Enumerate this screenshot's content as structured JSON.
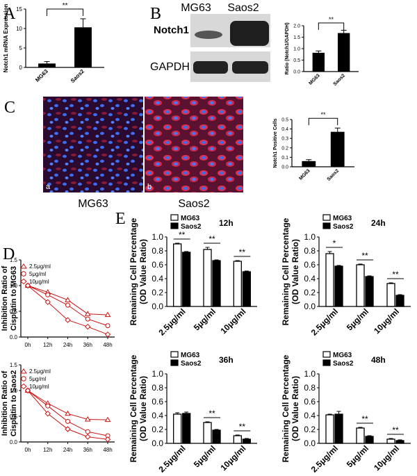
{
  "panel_labels": {
    "A": "A",
    "B": "B",
    "C": "C",
    "D": "D",
    "E": "E"
  },
  "blot": {
    "cell_lines": [
      "MG63",
      "Saos2"
    ],
    "rows": [
      "Notch1",
      "GAPDH"
    ],
    "colors": {
      "background": "#d8d8d8",
      "band": "#1e1e1e"
    }
  },
  "micrographs": {
    "labels": [
      "MG63",
      "Saos2"
    ],
    "sublabels": [
      "a",
      "b"
    ],
    "colors": {
      "background": "#2a0a2e",
      "nuclei": "#3c6cf0",
      "notch1": "#e0304a"
    }
  },
  "significance": {
    "double": "**",
    "single": "*"
  },
  "chart_data": [
    {
      "id": "A",
      "type": "bar",
      "categories": [
        "MG63",
        "Saos2"
      ],
      "values": [
        1.0,
        10.3
      ],
      "errors": [
        0.5,
        2.2
      ],
      "ylabel": "Notch1 mRNA Expression",
      "ylim": [
        0,
        15
      ],
      "yticks": [
        "0",
        "5",
        "10",
        "15"
      ],
      "bar_colors": [
        "#000000",
        "#000000"
      ],
      "significance": "**"
    },
    {
      "id": "B",
      "type": "bar",
      "categories": [
        "MG63",
        "Saos2"
      ],
      "values": [
        0.82,
        1.68
      ],
      "errors": [
        0.08,
        0.12
      ],
      "ylabel": "Ratio (Notch1/GAPDH)",
      "ylim": [
        0,
        2.0
      ],
      "yticks": [
        "0.0",
        "0.5",
        "1.0",
        "1.5",
        "2.0"
      ],
      "bar_colors": [
        "#000000",
        "#000000"
      ],
      "significance": "**"
    },
    {
      "id": "C",
      "type": "bar",
      "categories": [
        "MG63",
        "Saos2"
      ],
      "values": [
        0.06,
        0.37
      ],
      "errors": [
        0.015,
        0.04
      ],
      "ylabel": "Notch1 Positive Cells",
      "ylim": [
        0,
        0.5
      ],
      "yticks": [
        "0.0",
        "0.1",
        "0.2",
        "0.3",
        "0.4",
        "0.5"
      ],
      "bar_colors": [
        "#000000",
        "#000000"
      ],
      "significance": "**"
    },
    {
      "id": "D1",
      "type": "line",
      "x": [
        "0h",
        "12h",
        "24h",
        "36h",
        "48h"
      ],
      "ylabel_lines": [
        "Inhibition Ratio of",
        "Cisplatin to MG63"
      ],
      "ylim": [
        0,
        1.5
      ],
      "yticks": [
        "0.0",
        "0.5",
        "1.0",
        "1.5"
      ],
      "series": [
        {
          "name": "2.5μg/ml",
          "marker": "triangle",
          "values": [
            1.0,
            0.87,
            0.72,
            0.45,
            0.43
          ]
        },
        {
          "name": "5μg/ml",
          "marker": "circle",
          "values": [
            1.0,
            0.82,
            0.62,
            0.35,
            0.22
          ]
        },
        {
          "name": "10μg/ml",
          "marker": "diamond",
          "values": [
            1.0,
            0.68,
            0.33,
            0.2,
            0.05
          ]
        }
      ],
      "line_color": "#cc1111"
    },
    {
      "id": "D2",
      "type": "line",
      "x": [
        "0h",
        "12h",
        "24h",
        "36h",
        "48h"
      ],
      "ylabel_lines": [
        "Inhibition Ratio of",
        "Cisplatin to Saos2"
      ],
      "ylim": [
        0,
        1.5
      ],
      "yticks": [
        "0.0",
        "0.5",
        "1.0",
        "1.5"
      ],
      "series": [
        {
          "name": "2.5μg/ml",
          "marker": "triangle",
          "values": [
            1.0,
            0.75,
            0.55,
            0.44,
            0.43
          ]
        },
        {
          "name": "5μg/ml",
          "marker": "circle",
          "values": [
            1.0,
            0.7,
            0.4,
            0.2,
            0.12
          ]
        },
        {
          "name": "10μg/ml",
          "marker": "diamond",
          "values": [
            1.0,
            0.55,
            0.25,
            0.1,
            0.05
          ]
        }
      ],
      "line_color": "#cc1111"
    },
    {
      "id": "E-12h",
      "type": "bar",
      "title": "12h",
      "categories": [
        "2.5μg/ml",
        "5μg/ml",
        "10μg/ml"
      ],
      "ylabel_lines": [
        "Remaining Cell Percentage",
        "(OD Value Ratio)"
      ],
      "ylim": [
        0,
        1.0
      ],
      "yticks": [
        "0.0",
        "0.2",
        "0.4",
        "0.6",
        "0.8",
        "1.0"
      ],
      "series": [
        {
          "name": "MG63",
          "fill": "#ffffff",
          "values": [
            0.9,
            0.82,
            0.65
          ],
          "errors": [
            0.01,
            0.03,
            0.01
          ]
        },
        {
          "name": "Saos2",
          "fill": "#000000",
          "values": [
            0.78,
            0.66,
            0.5
          ],
          "errors": [
            0.01,
            0.01,
            0.01
          ]
        }
      ],
      "significance": [
        "**",
        "**",
        "**"
      ]
    },
    {
      "id": "E-24h",
      "type": "bar",
      "title": "24h",
      "categories": [
        "2.5μg/ml",
        "5μg/ml",
        "10μg/ml"
      ],
      "ylabel_lines": [
        "Remaining Cell Percentage",
        "(OD Value Ratio)"
      ],
      "ylim": [
        0,
        1.0
      ],
      "yticks": [
        "0.0",
        "0.2",
        "0.4",
        "0.6",
        "0.8",
        "1.0"
      ],
      "series": [
        {
          "name": "MG63",
          "fill": "#ffffff",
          "values": [
            0.76,
            0.6,
            0.33
          ],
          "errors": [
            0.03,
            0.01,
            0.01
          ]
        },
        {
          "name": "Saos2",
          "fill": "#000000",
          "values": [
            0.58,
            0.43,
            0.16
          ],
          "errors": [
            0.01,
            0.01,
            0.01
          ]
        }
      ],
      "significance": [
        "*",
        "**",
        "**"
      ]
    },
    {
      "id": "E-36h",
      "type": "bar",
      "title": "36h",
      "categories": [
        "2.5μg/ml",
        "5μg/ml",
        "10μg/ml"
      ],
      "ylabel_lines": [
        "Remaining Cell Percentage",
        "(OD Value Ratio)"
      ],
      "ylim": [
        0,
        1.0
      ],
      "yticks": [
        "0.0",
        "0.2",
        "0.4",
        "0.6",
        "0.8",
        "1.0"
      ],
      "series": [
        {
          "name": "MG63",
          "fill": "#ffffff",
          "values": [
            0.42,
            0.3,
            0.11
          ],
          "errors": [
            0.02,
            0.01,
            0.01
          ]
        },
        {
          "name": "Saos2",
          "fill": "#000000",
          "values": [
            0.43,
            0.19,
            0.06
          ],
          "errors": [
            0.02,
            0.01,
            0.01
          ]
        }
      ],
      "significance": [
        "",
        "**",
        "**"
      ]
    },
    {
      "id": "E-48h",
      "type": "bar",
      "title": "48h",
      "categories": [
        "2.5μg/ml",
        "5μg/ml",
        "10μg/ml"
      ],
      "ylabel_lines": [
        "Remaining Cell Percentage",
        "(OD Value Ratio)"
      ],
      "ylim": [
        0,
        1.0
      ],
      "yticks": [
        "0.0",
        "0.2",
        "0.4",
        "0.6",
        "0.8",
        "1.0"
      ],
      "series": [
        {
          "name": "MG63",
          "fill": "#ffffff",
          "values": [
            0.41,
            0.22,
            0.06
          ],
          "errors": [
            0.01,
            0.01,
            0.01
          ]
        },
        {
          "name": "Saos2",
          "fill": "#000000",
          "values": [
            0.42,
            0.1,
            0.04
          ],
          "errors": [
            0.04,
            0.01,
            0.01
          ]
        }
      ],
      "significance": [
        "",
        "**",
        "**"
      ]
    }
  ]
}
